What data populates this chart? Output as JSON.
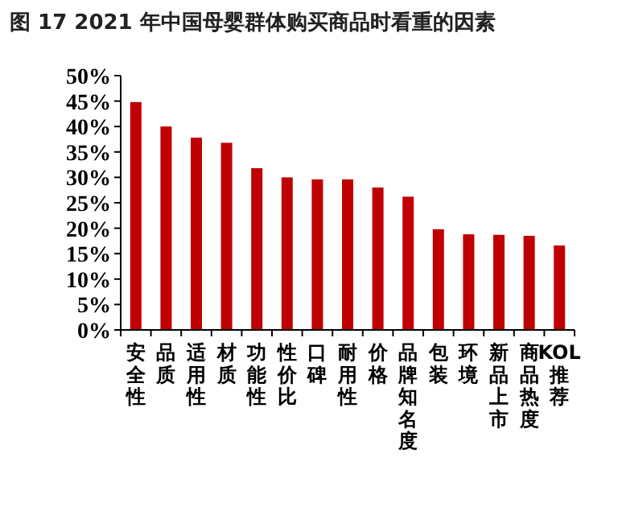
{
  "chart_data": {
    "type": "bar",
    "title": "图 17 2021 年中国母婴群体购买商品时看重的因素",
    "categories": [
      "安全性",
      "品质",
      "适用性",
      "材质",
      "功能性",
      "性价比",
      "口碑",
      "耐用性",
      "价格",
      "品牌知名度",
      "包装",
      "环境",
      "新品上市",
      "商品热度",
      "KOL推荐"
    ],
    "values": [
      44.8,
      40,
      37.8,
      36.8,
      31.8,
      30,
      29.6,
      29.6,
      28,
      26.2,
      19.8,
      18.8,
      18.7,
      18.5,
      16.6
    ],
    "color": "#c00000",
    "ylim": [
      0,
      50
    ],
    "yticks": [
      {
        "value": 0,
        "label": "0%"
      },
      {
        "value": 5,
        "label": "5%"
      },
      {
        "value": 10,
        "label": "10%"
      },
      {
        "value": 15,
        "label": "15%"
      },
      {
        "value": 20,
        "label": "20%"
      },
      {
        "value": 25,
        "label": "25%"
      },
      {
        "value": 30,
        "label": "30%"
      },
      {
        "value": 35,
        "label": "35%"
      },
      {
        "value": 40,
        "label": "40%"
      },
      {
        "value": 45,
        "label": "45%"
      },
      {
        "value": 50,
        "label": "50%"
      }
    ],
    "grid": false
  }
}
